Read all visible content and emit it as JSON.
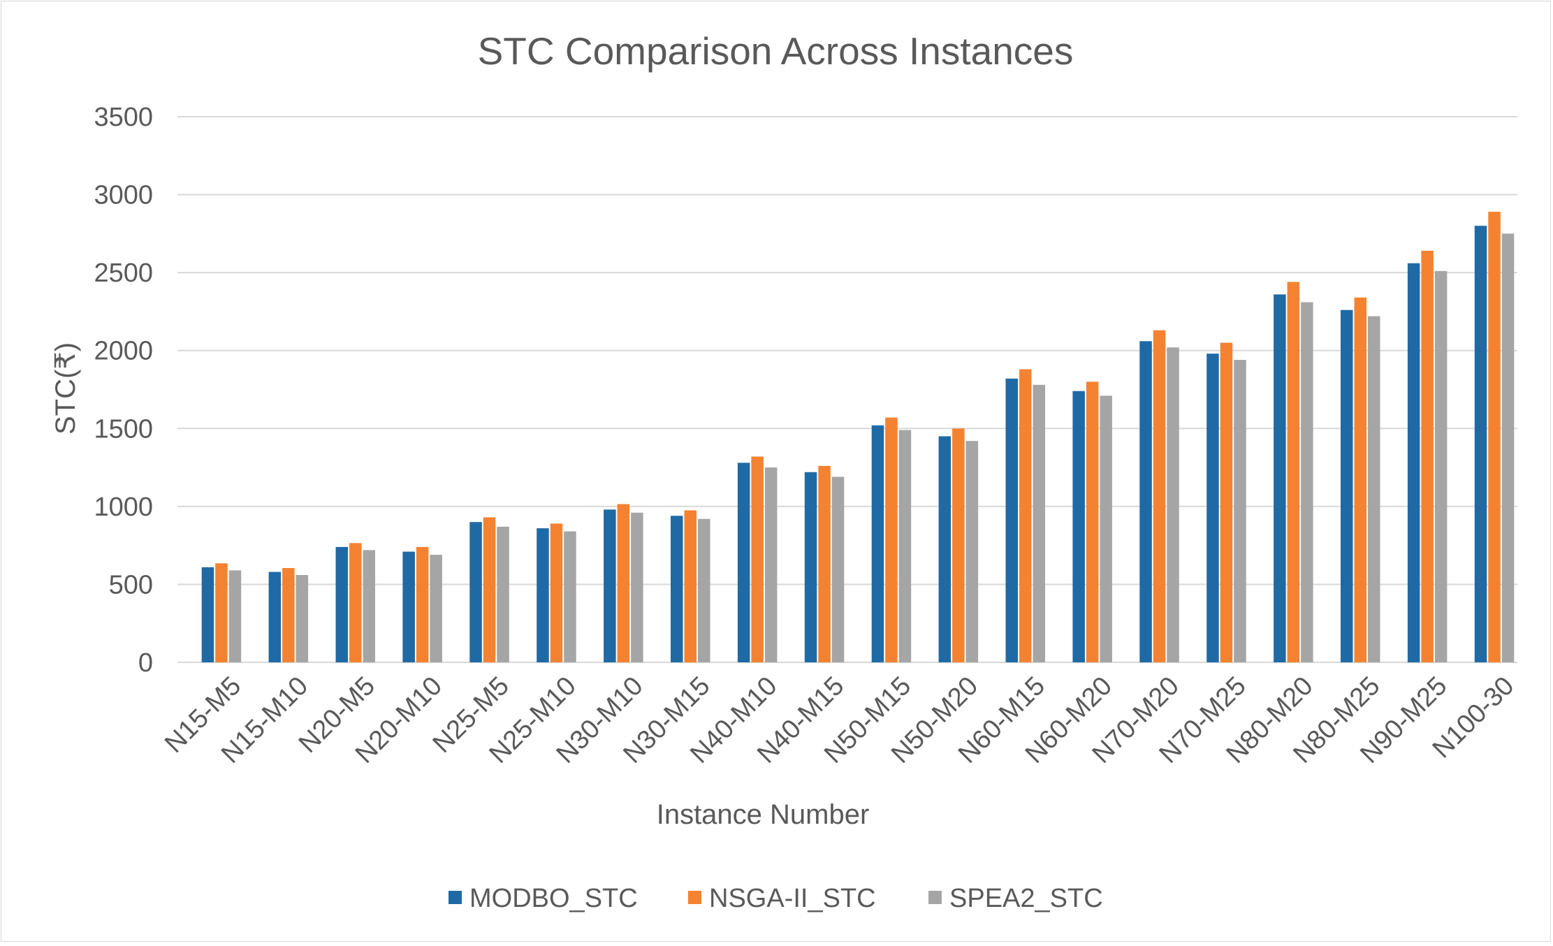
{
  "chart_data": {
    "type": "bar",
    "title": "STC Comparison Across Instances",
    "xlabel": "Instance Number",
    "ylabel": "STC(₹)",
    "ylim": [
      0,
      3500
    ],
    "yticks": [
      0,
      500,
      1000,
      1500,
      2000,
      2500,
      3000,
      3500
    ],
    "grid": true,
    "legend_position": "bottom",
    "categories": [
      "N15-M5",
      "N15-M10",
      "N20-M5",
      "N20-M10",
      "N25-M5",
      "N25-M10",
      "N30-M10",
      "N30-M15",
      "N40-M10",
      "N40-M15",
      "N50-M15",
      "N50-M20",
      "N60-M15",
      "N60-M20",
      "N70-M20",
      "N70-M25",
      "N80-M20",
      "N80-M25",
      "N90-M25",
      "N100-30"
    ],
    "series": [
      {
        "name": "MODBO_STC",
        "color": "#1f6aa5",
        "values": [
          610,
          580,
          740,
          710,
          900,
          860,
          980,
          940,
          1280,
          1220,
          1520,
          1450,
          1820,
          1740,
          2060,
          1980,
          2360,
          2260,
          2560,
          2800
        ]
      },
      {
        "name": "NSGA-II_STC",
        "color": "#f58231",
        "values": [
          635,
          605,
          765,
          740,
          930,
          890,
          1015,
          975,
          1320,
          1260,
          1570,
          1500,
          1880,
          1800,
          2130,
          2050,
          2440,
          2340,
          2640,
          2890
        ]
      },
      {
        "name": "SPEA2_STC",
        "color": "#a5a5a5",
        "values": [
          590,
          560,
          720,
          690,
          870,
          840,
          960,
          920,
          1250,
          1190,
          1490,
          1420,
          1780,
          1710,
          2020,
          1940,
          2310,
          2220,
          2510,
          2750
        ]
      }
    ]
  },
  "colors": {
    "gridline": "#d9d9d9",
    "text": "#595959"
  }
}
